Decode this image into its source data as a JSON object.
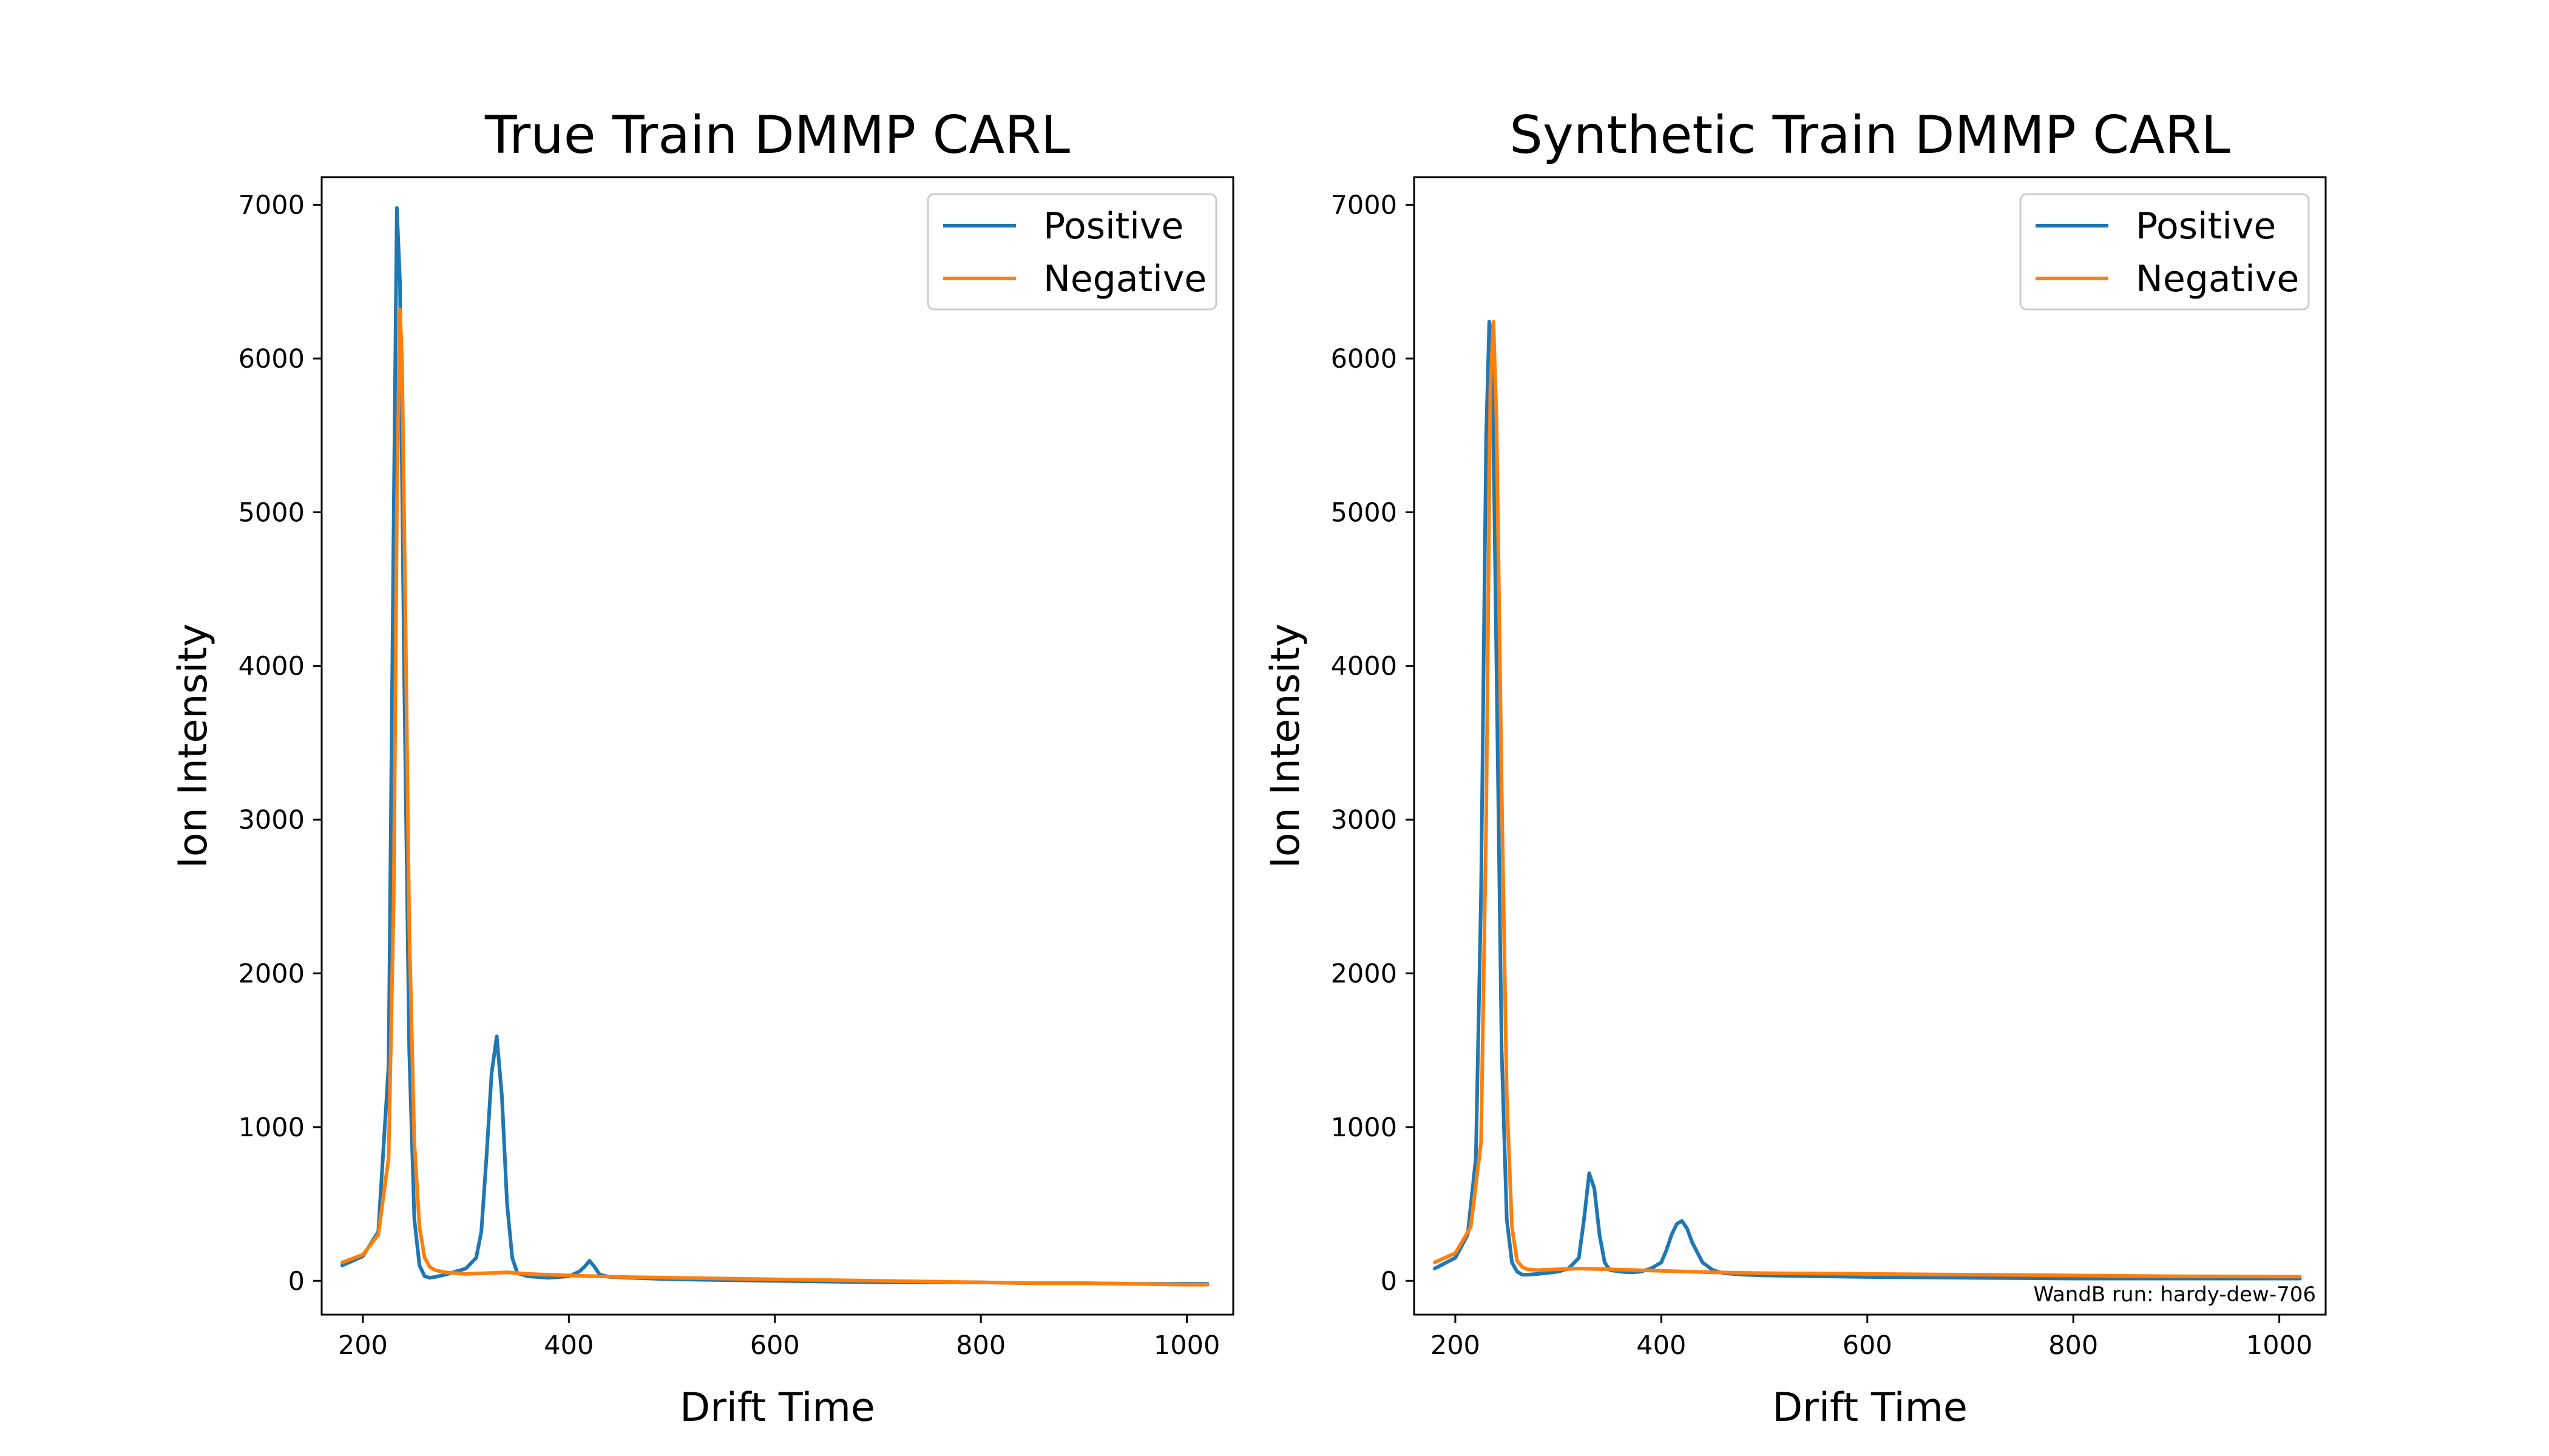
{
  "chart_data": [
    {
      "type": "line",
      "title": "True Train DMMP CARL",
      "xlabel": "Drift Time",
      "ylabel": "Ion Intensity",
      "xlim": [
        160,
        1045
      ],
      "ylim": [
        -220,
        7180
      ],
      "xticks": [
        200,
        400,
        600,
        800,
        1000
      ],
      "yticks": [
        0,
        1000,
        2000,
        3000,
        4000,
        5000,
        6000,
        7000
      ],
      "grid": false,
      "legend_position": "top-right",
      "series": [
        {
          "name": "Positive",
          "color": "#1f77b4",
          "x": [
            180,
            200,
            215,
            225,
            230,
            233,
            236,
            240,
            245,
            250,
            255,
            260,
            265,
            270,
            280,
            290,
            300,
            310,
            315,
            320,
            325,
            330,
            335,
            340,
            345,
            350,
            360,
            380,
            400,
            410,
            415,
            420,
            425,
            430,
            440,
            460,
            480,
            500,
            550,
            600,
            650,
            700,
            750,
            800,
            850,
            900,
            950,
            1000,
            1020
          ],
          "y": [
            100,
            160,
            320,
            1400,
            5000,
            6980,
            6500,
            4000,
            1500,
            400,
            100,
            30,
            20,
            25,
            40,
            60,
            80,
            150,
            320,
            800,
            1350,
            1590,
            1200,
            500,
            150,
            50,
            30,
            20,
            30,
            60,
            90,
            130,
            90,
            40,
            25,
            20,
            15,
            10,
            5,
            0,
            -5,
            -10,
            -10,
            -10,
            -15,
            -15,
            -20,
            -20,
            -20
          ]
        },
        {
          "name": "Negative",
          "color": "#ff7f0e",
          "x": [
            180,
            200,
            215,
            225,
            230,
            233,
            236,
            238,
            241,
            245,
            250,
            255,
            260,
            265,
            270,
            280,
            300,
            320,
            340,
            360,
            380,
            400,
            450,
            500,
            550,
            600,
            650,
            700,
            750,
            800,
            850,
            900,
            950,
            1000,
            1020
          ],
          "y": [
            120,
            170,
            300,
            800,
            2500,
            5000,
            6320,
            6000,
            4500,
            2300,
            900,
            350,
            150,
            90,
            70,
            55,
            45,
            50,
            55,
            45,
            40,
            35,
            25,
            20,
            15,
            10,
            5,
            0,
            -5,
            -10,
            -15,
            -15,
            -20,
            -25,
            -25
          ]
        }
      ]
    },
    {
      "type": "line",
      "title": "Synthetic Train DMMP CARL",
      "xlabel": "Drift Time",
      "ylabel": "Ion Intensity",
      "xlim": [
        160,
        1045
      ],
      "ylim": [
        -220,
        7180
      ],
      "xticks": [
        200,
        400,
        600,
        800,
        1000
      ],
      "yticks": [
        0,
        1000,
        2000,
        3000,
        4000,
        5000,
        6000,
        7000
      ],
      "grid": false,
      "legend_position": "top-right",
      "annotation": "WandB run: hardy-dew-706",
      "series": [
        {
          "name": "Positive",
          "color": "#1f77b4",
          "x": [
            180,
            200,
            212,
            220,
            225,
            230,
            233,
            236,
            240,
            245,
            250,
            255,
            260,
            265,
            270,
            280,
            300,
            310,
            320,
            325,
            330,
            335,
            340,
            345,
            350,
            360,
            370,
            380,
            390,
            400,
            405,
            410,
            415,
            420,
            425,
            430,
            440,
            450,
            460,
            480,
            500,
            550,
            600,
            700,
            800,
            900,
            1000,
            1020
          ],
          "y": [
            80,
            150,
            300,
            800,
            2500,
            5500,
            6240,
            6000,
            4000,
            1500,
            400,
            120,
            60,
            40,
            40,
            45,
            60,
            80,
            150,
            400,
            700,
            600,
            300,
            120,
            70,
            60,
            55,
            60,
            80,
            120,
            200,
            300,
            370,
            390,
            340,
            250,
            120,
            70,
            50,
            40,
            35,
            30,
            25,
            20,
            15,
            15,
            15,
            15
          ]
        },
        {
          "name": "Negative",
          "color": "#ff7f0e",
          "x": [
            180,
            200,
            215,
            225,
            230,
            234,
            237,
            240,
            245,
            250,
            255,
            260,
            265,
            270,
            280,
            300,
            320,
            350,
            400,
            450,
            500,
            600,
            700,
            800,
            900,
            1000,
            1020
          ],
          "y": [
            120,
            180,
            350,
            900,
            3000,
            5800,
            6240,
            5600,
            3200,
            1200,
            350,
            130,
            90,
            75,
            70,
            75,
            80,
            75,
            65,
            55,
            50,
            45,
            40,
            35,
            30,
            28,
            28
          ]
        }
      ]
    }
  ]
}
